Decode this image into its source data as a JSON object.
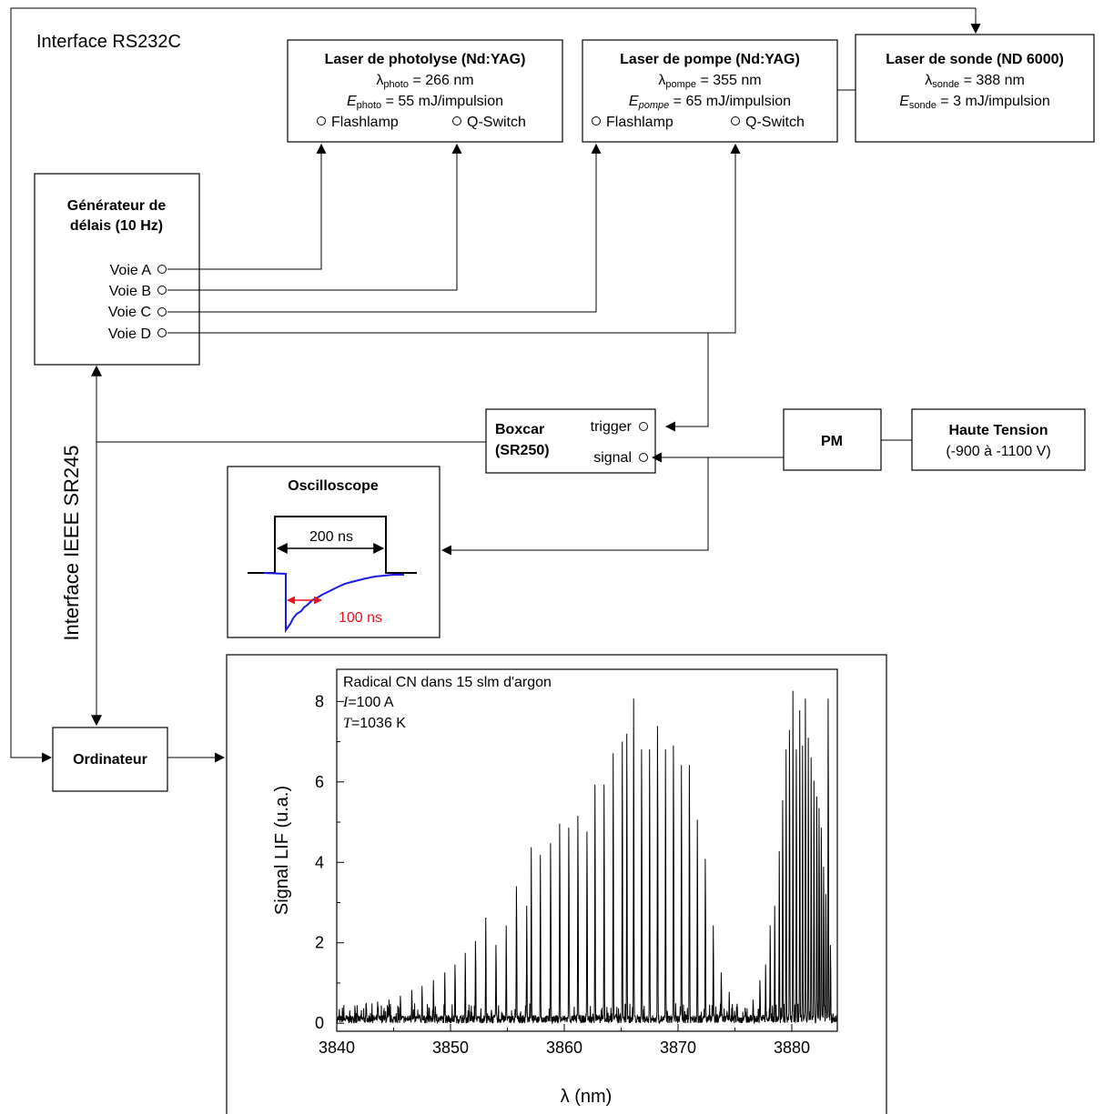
{
  "interface_rs232": "Interface RS232C",
  "interface_ieee": "Interface IEEE SR245",
  "laser_photolyse": {
    "title": "Laser de photolyse (Nd:YAG)",
    "lambda_sym": "λ",
    "lambda_sub": "photo",
    "lambda_val": " = 266 nm",
    "e_sym": "E",
    "e_sub": "photo",
    "e_val": " = 55 mJ/impulsion",
    "flashlamp": "Flashlamp",
    "qswitch": "Q-Switch"
  },
  "laser_pompe": {
    "title": "Laser de pompe (Nd:YAG)",
    "lambda_sym": "λ",
    "lambda_sub": "pompe",
    "lambda_val": " = 355 nm",
    "e_sym": "E",
    "e_sub": "pompe",
    "e_val": " = 65 mJ/impulsion",
    "flashlamp": "Flashlamp",
    "qswitch": "Q-Switch"
  },
  "laser_sonde": {
    "title": "Laser de sonde (ND 6000)",
    "lambda_sym": "λ",
    "lambda_sub": "sonde",
    "lambda_val": " = 388 nm",
    "e_sym": "E",
    "e_sub": "sonde",
    "e_val": " = 3 mJ/impulsion"
  },
  "generator": {
    "title_line1": "Générateur de",
    "title_line2": "délais (10 Hz)",
    "channels": [
      "Voie A",
      "Voie B",
      "Voie C",
      "Voie D"
    ]
  },
  "boxcar": {
    "title_line1": "Boxcar",
    "title_line2": "(SR250)",
    "trigger": "trigger",
    "signal": "signal"
  },
  "pm": "PM",
  "haute_tension": {
    "title": "Haute Tension",
    "range": "(-900 à -1100 V)"
  },
  "oscilloscope": {
    "title": "Oscilloscope",
    "gate_label": "200 ns",
    "decay_label": "100 ns",
    "decay_color": "#e8141b",
    "trace_color": "#1a1ae6"
  },
  "ordinateur": "Ordinateur",
  "chart_data": {
    "type": "line",
    "xlabel": "λ (nm)",
    "ylabel": "Signal LIF (u.a.)",
    "xlim": [
      3840,
      3884
    ],
    "ylim": [
      -0.2,
      8.8
    ],
    "xticks": [
      3840,
      3850,
      3860,
      3870,
      3880
    ],
    "yticks": [
      0,
      2,
      4,
      6,
      8
    ],
    "annotation_line1": "Radical CN dans 15 slm d'argon",
    "annotation_I_sym": "I",
    "annotation_I_val": "=100 A",
    "annotation_T_sym": "T",
    "annotation_T_val": "=1036 K",
    "noise_level": 0.2,
    "peaks": [
      {
        "x": 3840.5,
        "y": 0.4
      },
      {
        "x": 3841.6,
        "y": 0.45
      },
      {
        "x": 3842.6,
        "y": 0.5
      },
      {
        "x": 3843.6,
        "y": 0.55
      },
      {
        "x": 3844.6,
        "y": 0.6
      },
      {
        "x": 3845.6,
        "y": 0.7
      },
      {
        "x": 3846.6,
        "y": 0.85
      },
      {
        "x": 3847.5,
        "y": 0.95
      },
      {
        "x": 3848.5,
        "y": 1.1
      },
      {
        "x": 3849.5,
        "y": 1.3
      },
      {
        "x": 3850.4,
        "y": 1.5
      },
      {
        "x": 3851.3,
        "y": 1.8
      },
      {
        "x": 3852.2,
        "y": 2.1
      },
      {
        "x": 3853.1,
        "y": 2.7
      },
      {
        "x": 3854.0,
        "y": 2.0
      },
      {
        "x": 3854.9,
        "y": 2.5
      },
      {
        "x": 3855.8,
        "y": 3.5
      },
      {
        "x": 3856.7,
        "y": 3.0
      },
      {
        "x": 3857.1,
        "y": 4.5
      },
      {
        "x": 3857.9,
        "y": 4.3
      },
      {
        "x": 3858.8,
        "y": 4.6
      },
      {
        "x": 3859.6,
        "y": 5.1
      },
      {
        "x": 3860.4,
        "y": 5.0
      },
      {
        "x": 3861.2,
        "y": 5.3
      },
      {
        "x": 3862.0,
        "y": 4.9
      },
      {
        "x": 3862.7,
        "y": 6.1
      },
      {
        "x": 3863.5,
        "y": 6.1
      },
      {
        "x": 3864.3,
        "y": 6.9
      },
      {
        "x": 3865.1,
        "y": 7.2
      },
      {
        "x": 3865.5,
        "y": 7.4
      },
      {
        "x": 3866.1,
        "y": 8.3
      },
      {
        "x": 3866.8,
        "y": 7.0
      },
      {
        "x": 3867.5,
        "y": 7.0
      },
      {
        "x": 3868.2,
        "y": 7.6
      },
      {
        "x": 3868.9,
        "y": 7.0
      },
      {
        "x": 3869.6,
        "y": 7.1
      },
      {
        "x": 3870.3,
        "y": 6.6
      },
      {
        "x": 3871.0,
        "y": 6.6
      },
      {
        "x": 3871.7,
        "y": 5.2
      },
      {
        "x": 3872.4,
        "y": 4.2
      },
      {
        "x": 3873.1,
        "y": 2.5
      },
      {
        "x": 3873.8,
        "y": 1.3
      },
      {
        "x": 3874.5,
        "y": 0.8
      },
      {
        "x": 3875.2,
        "y": 0.5
      },
      {
        "x": 3875.9,
        "y": 0.4
      },
      {
        "x": 3876.6,
        "y": 0.6
      },
      {
        "x": 3877.2,
        "y": 1.1
      },
      {
        "x": 3877.7,
        "y": 1.5
      },
      {
        "x": 3878.1,
        "y": 2.5
      },
      {
        "x": 3878.5,
        "y": 3.0
      },
      {
        "x": 3878.9,
        "y": 4.4
      },
      {
        "x": 3879.2,
        "y": 5.7
      },
      {
        "x": 3879.5,
        "y": 7.0
      },
      {
        "x": 3879.8,
        "y": 7.5
      },
      {
        "x": 3880.1,
        "y": 8.5
      },
      {
        "x": 3880.4,
        "y": 7.0
      },
      {
        "x": 3880.7,
        "y": 8.0
      },
      {
        "x": 3880.95,
        "y": 7.1
      },
      {
        "x": 3881.2,
        "y": 8.3
      },
      {
        "x": 3881.45,
        "y": 7.3
      },
      {
        "x": 3881.7,
        "y": 6.8
      },
      {
        "x": 3881.95,
        "y": 6.2
      },
      {
        "x": 3882.2,
        "y": 5.8
      },
      {
        "x": 3882.4,
        "y": 5.5
      },
      {
        "x": 3882.6,
        "y": 5.0
      },
      {
        "x": 3882.8,
        "y": 4.0
      },
      {
        "x": 3883.0,
        "y": 3.3
      },
      {
        "x": 3883.2,
        "y": 8.3
      },
      {
        "x": 3883.4,
        "y": 2.0
      }
    ]
  }
}
